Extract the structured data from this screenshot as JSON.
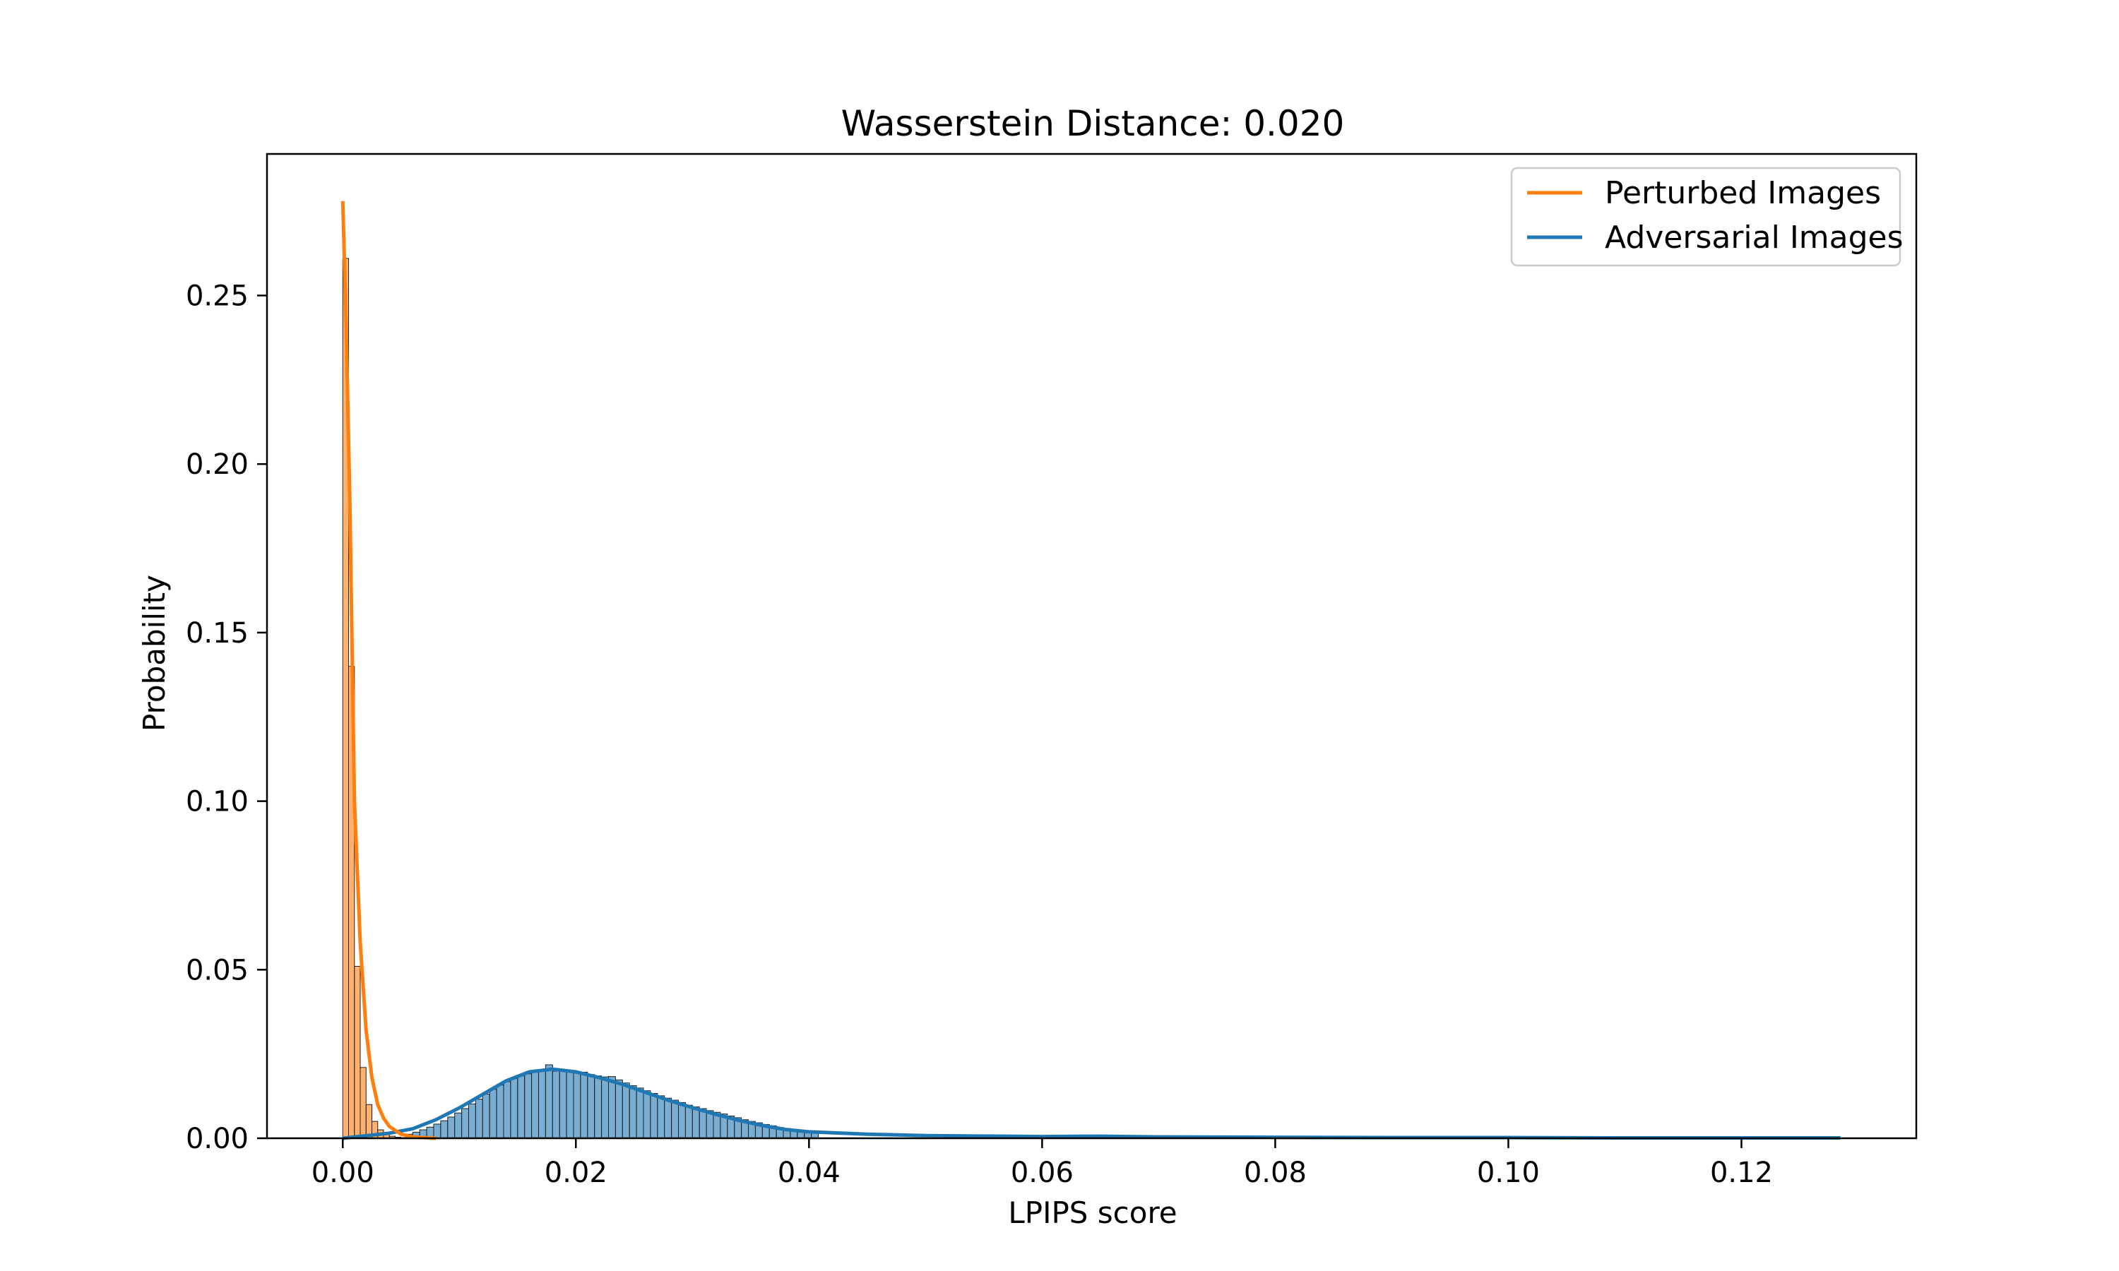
{
  "chart_data": {
    "type": "histogram",
    "title": "Wasserstein Distance: 0.020",
    "xlabel": "LPIPS score",
    "ylabel": "Probability",
    "xlim": [
      -0.0065,
      0.135
    ],
    "ylim": [
      0,
      0.292
    ],
    "xticks": [
      0.0,
      0.02,
      0.04,
      0.06,
      0.08,
      0.1,
      0.12
    ],
    "xtick_labels": [
      "0.00",
      "0.02",
      "0.04",
      "0.06",
      "0.08",
      "0.10",
      "0.12"
    ],
    "yticks": [
      0.0,
      0.05,
      0.1,
      0.15,
      0.2,
      0.25
    ],
    "ytick_labels": [
      "0.00",
      "0.05",
      "0.10",
      "0.15",
      "0.20",
      "0.25"
    ],
    "grid": false,
    "legend": {
      "placement": "top-right",
      "entries": [
        "Perturbed Images",
        "Adversarial Images"
      ]
    },
    "series": [
      {
        "name": "Perturbed Images",
        "color": "#ff7f0e",
        "bin_width": 0.0005,
        "bins_x": [
          0.0,
          0.0005,
          0.001,
          0.0015,
          0.002,
          0.0025,
          0.003,
          0.0035,
          0.004,
          0.0045,
          0.005,
          0.0055
        ],
        "bins_y": [
          0.261,
          0.14,
          0.051,
          0.021,
          0.01,
          0.005,
          0.0025,
          0.0012,
          0.0006,
          0.0003,
          0.00015,
          0.0001
        ],
        "kde_x": [
          0.0,
          0.0003,
          0.0006,
          0.001,
          0.0015,
          0.002,
          0.0025,
          0.003,
          0.0035,
          0.004,
          0.005,
          0.006,
          0.008
        ],
        "kde_y": [
          0.278,
          0.24,
          0.19,
          0.1,
          0.058,
          0.032,
          0.018,
          0.01,
          0.006,
          0.0035,
          0.0012,
          0.0004,
          0.0
        ]
      },
      {
        "name": "Adversarial Images",
        "color": "#1f77b4",
        "bin_width": 0.0006,
        "bins_x": [
          0.0054,
          0.006,
          0.0066,
          0.0072,
          0.0078,
          0.0084,
          0.009,
          0.0096,
          0.0102,
          0.0108,
          0.0114,
          0.012,
          0.0126,
          0.0132,
          0.0138,
          0.0144,
          0.015,
          0.0156,
          0.0162,
          0.0168,
          0.0174,
          0.018,
          0.0186,
          0.0192,
          0.0198,
          0.0204,
          0.021,
          0.0216,
          0.0222,
          0.0228,
          0.0234,
          0.024,
          0.0246,
          0.0252,
          0.0258,
          0.0264,
          0.027,
          0.0276,
          0.0282,
          0.0288,
          0.0294,
          0.03,
          0.0306,
          0.0312,
          0.0318,
          0.0324,
          0.033,
          0.0336,
          0.0342,
          0.0348,
          0.0354,
          0.036,
          0.0366,
          0.0372,
          0.0378,
          0.0384,
          0.039,
          0.0396,
          0.0402
        ],
        "bins_y": [
          0.0012,
          0.0018,
          0.0025,
          0.0033,
          0.0042,
          0.0052,
          0.0063,
          0.0075,
          0.0088,
          0.0102,
          0.0116,
          0.0131,
          0.0145,
          0.0158,
          0.0168,
          0.0177,
          0.0185,
          0.0191,
          0.0196,
          0.0203,
          0.0218,
          0.0199,
          0.0204,
          0.0201,
          0.0198,
          0.0196,
          0.0189,
          0.0185,
          0.0182,
          0.0183,
          0.0173,
          0.0164,
          0.0156,
          0.0149,
          0.0141,
          0.0133,
          0.0126,
          0.0119,
          0.0113,
          0.0106,
          0.0098,
          0.0093,
          0.0088,
          0.0082,
          0.0077,
          0.0072,
          0.0066,
          0.0061,
          0.0055,
          0.005,
          0.0046,
          0.0041,
          0.0037,
          0.0032,
          0.0029,
          0.0026,
          0.0023,
          0.0021,
          0.0019
        ],
        "kde_x": [
          0.0,
          0.004,
          0.006,
          0.008,
          0.01,
          0.012,
          0.014,
          0.016,
          0.018,
          0.02,
          0.022,
          0.024,
          0.026,
          0.028,
          0.03,
          0.032,
          0.034,
          0.036,
          0.038,
          0.04,
          0.045,
          0.05,
          0.06,
          0.065,
          0.07,
          0.08,
          0.09,
          0.1,
          0.11,
          0.12,
          0.1285
        ],
        "kde_y": [
          0.0,
          0.0015,
          0.0028,
          0.0055,
          0.009,
          0.013,
          0.017,
          0.0197,
          0.0205,
          0.0197,
          0.018,
          0.016,
          0.0136,
          0.0112,
          0.0091,
          0.0071,
          0.0053,
          0.0038,
          0.0026,
          0.0019,
          0.0012,
          0.0008,
          0.0005,
          0.0006,
          0.0004,
          0.0003,
          0.0002,
          0.0002,
          0.0001,
          0.0001,
          0.0001
        ]
      }
    ]
  }
}
